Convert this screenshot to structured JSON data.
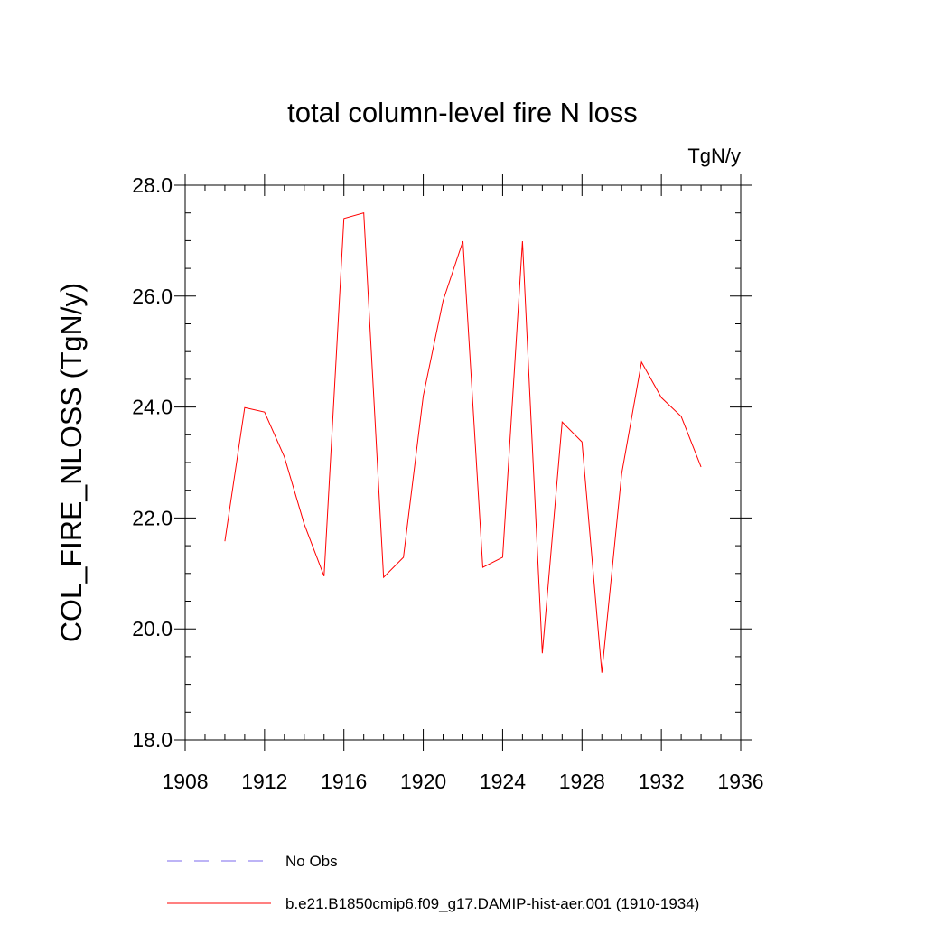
{
  "chart_data": {
    "type": "line",
    "title": "total column-level fire N loss",
    "units": "TgN/y",
    "y_label": "COL_FIRE_NLOSS  (TgN/y)",
    "x": [
      1910,
      1911,
      1912,
      1913,
      1914,
      1915,
      1916,
      1917,
      1918,
      1919,
      1920,
      1921,
      1922,
      1923,
      1924,
      1925,
      1926,
      1927,
      1928,
      1929,
      1930,
      1931,
      1932,
      1933,
      1934
    ],
    "series": [
      {
        "name": "b.e21.B1850cmip6.f09_g17.DAMIP-hist-aer.001 (1910-1934)",
        "color": "#ff0000",
        "values": [
          21.58,
          23.99,
          23.91,
          23.1,
          21.89,
          20.95,
          27.4,
          27.5,
          20.93,
          21.29,
          24.2,
          25.92,
          26.99,
          21.11,
          21.29,
          26.99,
          19.56,
          23.73,
          23.37,
          19.21,
          22.8,
          24.81,
          24.17,
          23.83,
          22.92
        ]
      }
    ],
    "legend_extra": [
      {
        "name": "No Obs",
        "color": "#7b68ee",
        "dashed": true
      }
    ],
    "xlim": [
      1908,
      1936
    ],
    "xticks": [
      1908,
      1912,
      1916,
      1920,
      1924,
      1928,
      1932,
      1936
    ],
    "ylim": [
      18,
      28
    ],
    "yticks": [
      {
        "value": 18,
        "label": "18.0"
      },
      {
        "value": 20,
        "label": "20.0"
      },
      {
        "value": 22,
        "label": "22.0"
      },
      {
        "value": 24,
        "label": "24.0"
      },
      {
        "value": 26,
        "label": "26.0"
      },
      {
        "value": 28,
        "label": "28.0"
      }
    ]
  }
}
